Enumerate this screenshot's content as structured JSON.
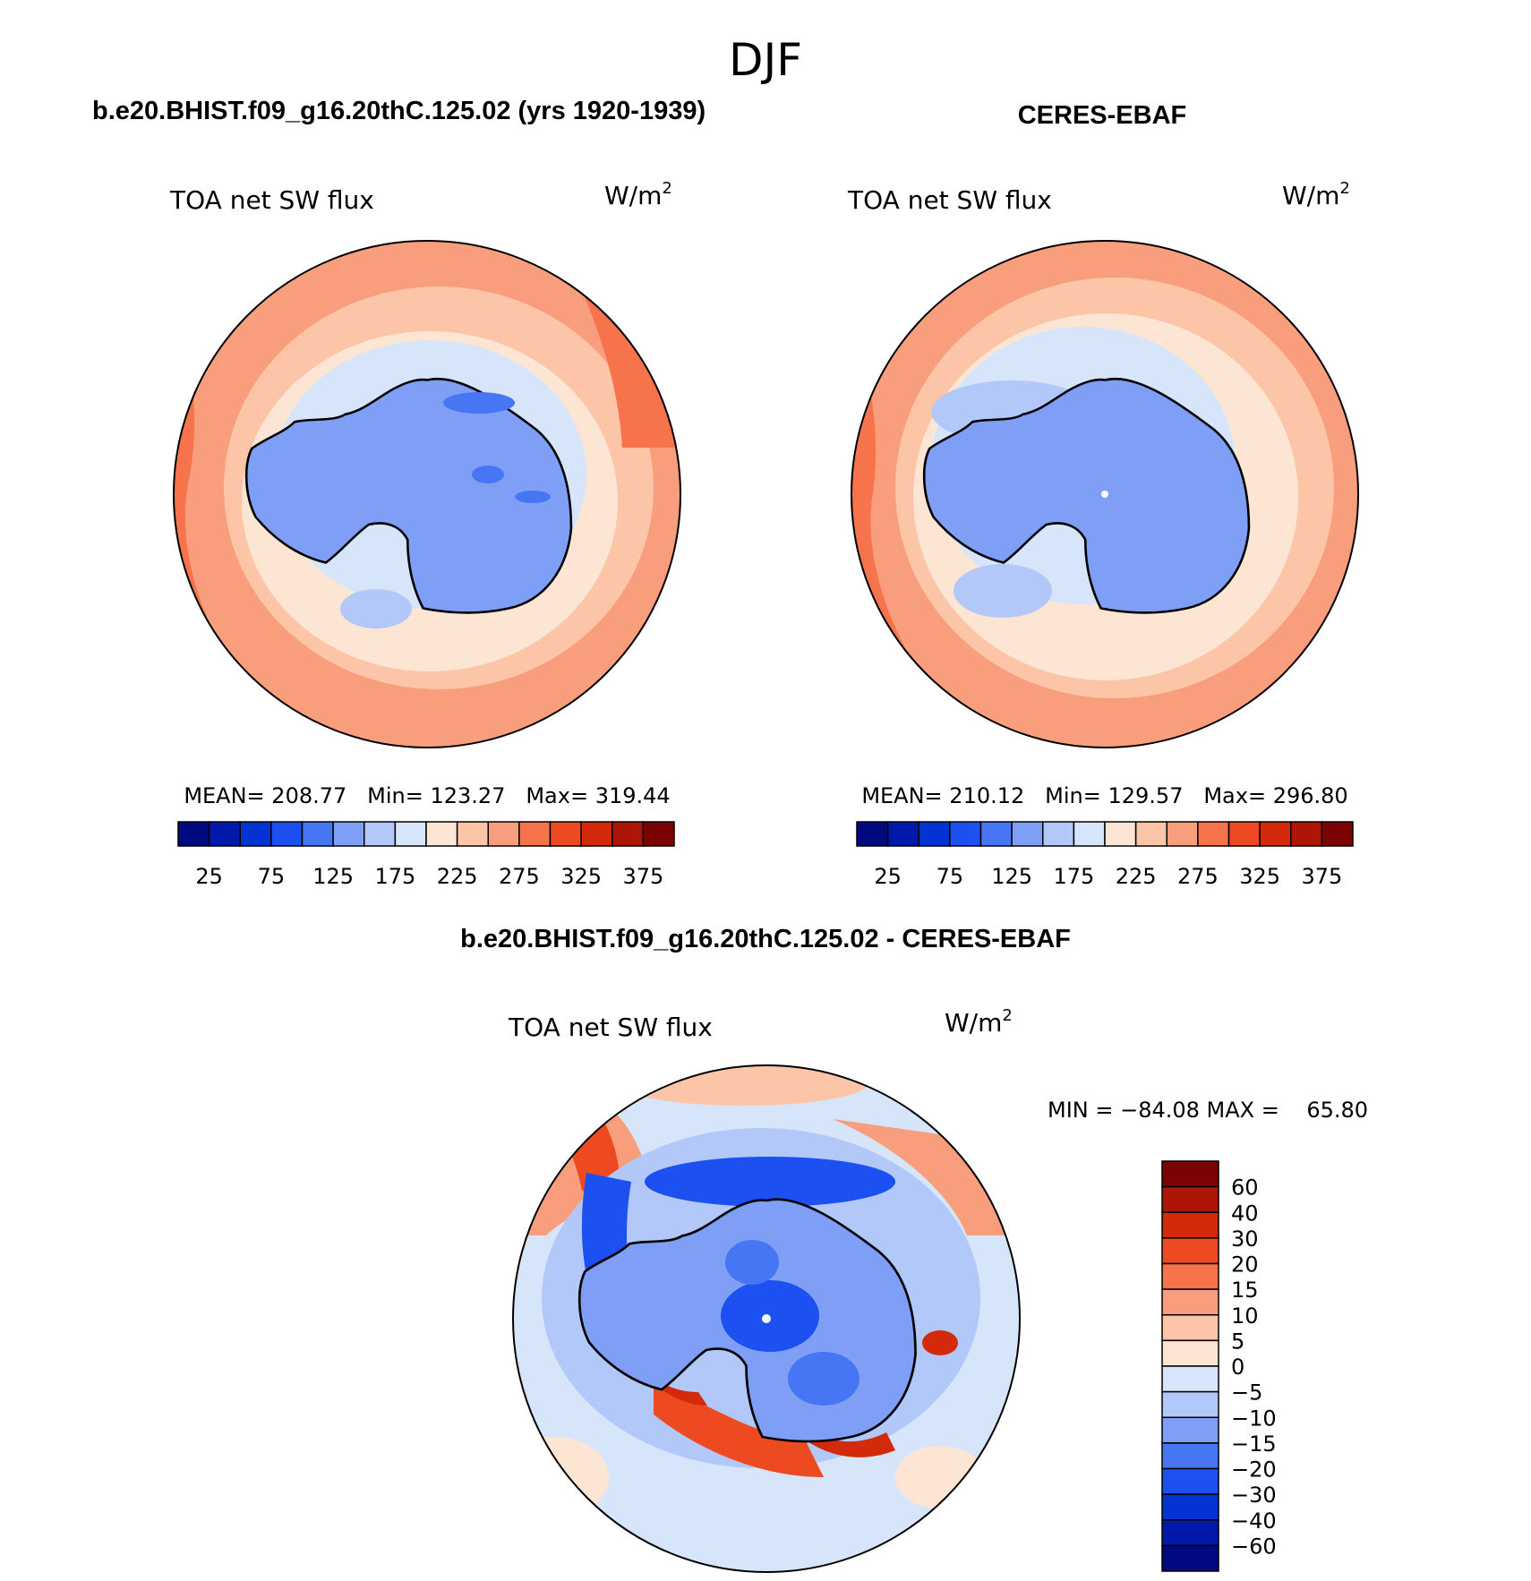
{
  "season": "DJF",
  "colors": {
    "abs_levels": [
      "#000a80",
      "#0019a8",
      "#0333d2",
      "#1c50f0",
      "#4676f3",
      "#7e9ff5",
      "#b2c8f8",
      "#d7e5fb",
      "#fde5d4",
      "#fcc5a8",
      "#f99e7c",
      "#f6734c",
      "#ee4a22",
      "#d42a0c",
      "#ad1606",
      "#7b0303"
    ],
    "diff_levels": [
      "#000a80",
      "#0019a8",
      "#0333d2",
      "#1c50f0",
      "#4676f3",
      "#7e9ff5",
      "#b2c8f8",
      "#d7e5fb",
      "#fde5d4",
      "#fcc5a8",
      "#f99e7c",
      "#f6734c",
      "#ee4a22",
      "#d42a0c",
      "#ad1606",
      "#7b0303"
    ],
    "land": "#7e9ff5",
    "coast": "#000000"
  },
  "panels": [
    {
      "title": "b.e20.BHIST.f09_g16.20thC.125.02 (yrs 1920-1939)",
      "variable": "TOA net SW flux",
      "units": "W/m",
      "units_exp": "2",
      "stats": "MEAN= 208.77   Min= 123.27   Max= 319.44",
      "ticks": [
        "25",
        "75",
        "125",
        "175",
        "225",
        "275",
        "325",
        "375"
      ]
    },
    {
      "title": "CERES-EBAF",
      "variable": "TOA net SW flux",
      "units": "W/m",
      "units_exp": "2",
      "stats": "MEAN= 210.12   Min= 129.57   Max= 296.80",
      "ticks": [
        "25",
        "75",
        "125",
        "175",
        "225",
        "275",
        "325",
        "375"
      ]
    }
  ],
  "difference": {
    "title": "b.e20.BHIST.f09_g16.20thC.125.02 - CERES-EBAF",
    "variable": "TOA net SW flux",
    "units": "W/m",
    "units_exp": "2",
    "stats": "MIN = −84.08 MAX =    65.80",
    "ticks": [
      "60",
      "40",
      "30",
      "20",
      "15",
      "10",
      "5",
      "0",
      "−5",
      "−10",
      "−15",
      "−20",
      "−30",
      "−40",
      "−60"
    ]
  },
  "chart_data": [
    {
      "type": "heatmap",
      "projection": "south polar stereographic",
      "title": "b.e20.BHIST.f09_g16.20thC.125.02 (yrs 1920-1939)",
      "variable": "TOA net SW flux",
      "units": "W/m2",
      "mean": 208.77,
      "min": 123.27,
      "max": 319.44,
      "colorbar_levels": [
        25,
        50,
        75,
        100,
        125,
        150,
        175,
        200,
        225,
        250,
        275,
        300,
        325,
        350,
        375
      ]
    },
    {
      "type": "heatmap",
      "projection": "south polar stereographic",
      "title": "CERES-EBAF",
      "variable": "TOA net SW flux",
      "units": "W/m2",
      "mean": 210.12,
      "min": 129.57,
      "max": 296.8,
      "colorbar_levels": [
        25,
        50,
        75,
        100,
        125,
        150,
        175,
        200,
        225,
        250,
        275,
        300,
        325,
        350,
        375
      ]
    },
    {
      "type": "heatmap",
      "projection": "south polar stereographic",
      "title": "b.e20.BHIST.f09_g16.20thC.125.02 - CERES-EBAF",
      "variable": "TOA net SW flux",
      "units": "W/m2",
      "min": -84.08,
      "max": 65.8,
      "colorbar_levels": [
        -60,
        -40,
        -30,
        -20,
        -15,
        -10,
        -5,
        0,
        5,
        10,
        15,
        20,
        30,
        40,
        60
      ]
    }
  ]
}
